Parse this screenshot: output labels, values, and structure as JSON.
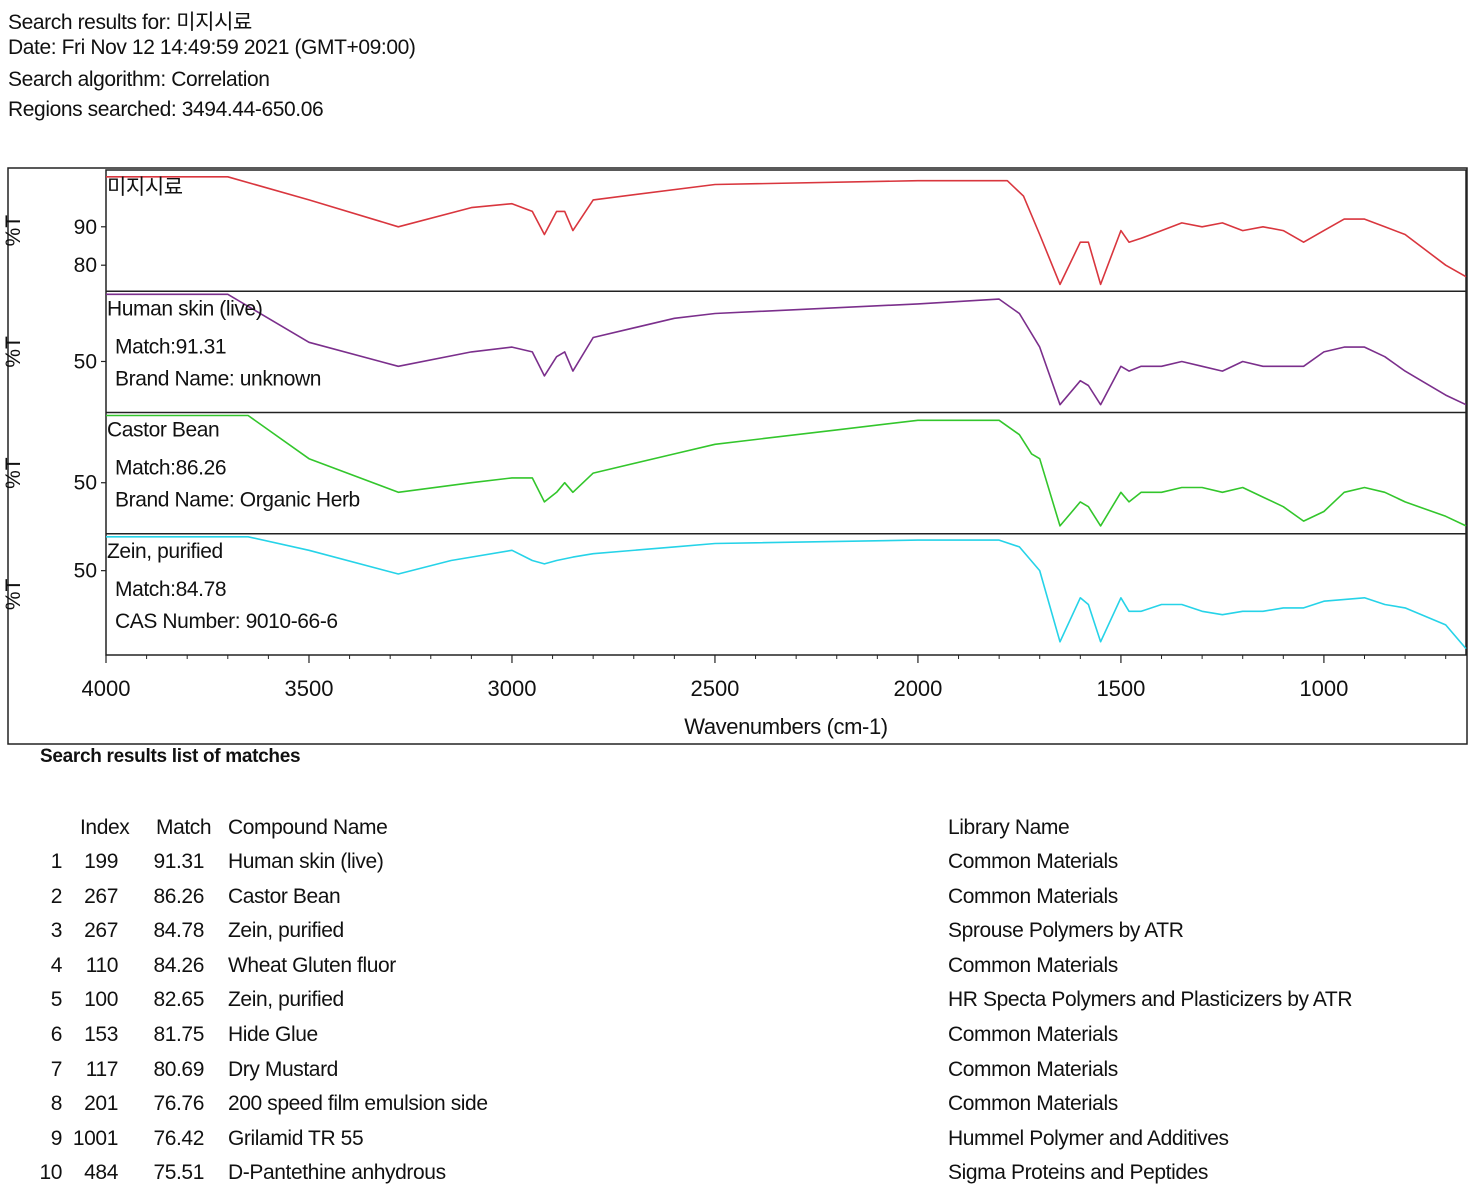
{
  "header": {
    "search_results": "Search results for:  미지시료",
    "date": "Date:  Fri Nov 12 14:49:59 2021 (GMT+09:00)",
    "algorithm": "Search algorithm:  Correlation",
    "regions": "Regions searched:  3494.44-650.06"
  },
  "chart_data": {
    "type": "line",
    "xlabel": "Wavenumbers (cm-1)",
    "xlim": [
      4000,
      650
    ],
    "x_ticks": [
      4000,
      3500,
      3000,
      2500,
      2000,
      1500,
      1000
    ],
    "panels": [
      {
        "name": "미지시료",
        "ylabel": "%T",
        "yticks": [
          90,
          80
        ],
        "ylim": [
          74,
          104
        ],
        "color": "#d9363e",
        "info": [],
        "points": [
          [
            4000,
            103
          ],
          [
            3700,
            103
          ],
          [
            3500,
            97
          ],
          [
            3280,
            90
          ],
          [
            3100,
            95
          ],
          [
            3000,
            96
          ],
          [
            2950,
            94
          ],
          [
            2920,
            88
          ],
          [
            2890,
            94
          ],
          [
            2870,
            94
          ],
          [
            2850,
            89
          ],
          [
            2800,
            97
          ],
          [
            2500,
            101
          ],
          [
            2000,
            102
          ],
          [
            1780,
            102
          ],
          [
            1740,
            98
          ],
          [
            1700,
            88
          ],
          [
            1650,
            75
          ],
          [
            1600,
            86
          ],
          [
            1580,
            86
          ],
          [
            1550,
            75
          ],
          [
            1500,
            89
          ],
          [
            1480,
            86
          ],
          [
            1450,
            87
          ],
          [
            1400,
            89
          ],
          [
            1350,
            91
          ],
          [
            1300,
            90
          ],
          [
            1250,
            91
          ],
          [
            1200,
            89
          ],
          [
            1150,
            90
          ],
          [
            1100,
            89
          ],
          [
            1050,
            86
          ],
          [
            1000,
            89
          ],
          [
            950,
            92
          ],
          [
            900,
            92
          ],
          [
            850,
            90
          ],
          [
            800,
            88
          ],
          [
            700,
            80
          ],
          [
            650,
            77
          ]
        ]
      },
      {
        "name": "Human skin (live)",
        "ylabel": "%T",
        "yticks": [
          50
        ],
        "ylim": [
          40,
          64
        ],
        "color": "#7b2f8c",
        "info": [
          "Match:91.31",
          "Brand Name:  unknown"
        ],
        "points": [
          [
            4000,
            64
          ],
          [
            3700,
            64
          ],
          [
            3500,
            54
          ],
          [
            3280,
            49
          ],
          [
            3100,
            52
          ],
          [
            3000,
            53
          ],
          [
            2950,
            52
          ],
          [
            2920,
            47
          ],
          [
            2890,
            51
          ],
          [
            2870,
            52
          ],
          [
            2850,
            48
          ],
          [
            2800,
            55
          ],
          [
            2600,
            59
          ],
          [
            2500,
            60
          ],
          [
            2000,
            62
          ],
          [
            1800,
            63
          ],
          [
            1750,
            60
          ],
          [
            1700,
            53
          ],
          [
            1650,
            41
          ],
          [
            1600,
            46
          ],
          [
            1580,
            45
          ],
          [
            1550,
            41
          ],
          [
            1500,
            49
          ],
          [
            1480,
            48
          ],
          [
            1450,
            49
          ],
          [
            1400,
            49
          ],
          [
            1350,
            50
          ],
          [
            1300,
            49
          ],
          [
            1250,
            48
          ],
          [
            1200,
            50
          ],
          [
            1150,
            49
          ],
          [
            1100,
            49
          ],
          [
            1050,
            49
          ],
          [
            1000,
            52
          ],
          [
            950,
            53
          ],
          [
            900,
            53
          ],
          [
            850,
            51
          ],
          [
            800,
            48
          ],
          [
            700,
            43
          ],
          [
            650,
            41
          ]
        ]
      },
      {
        "name": "Castor Bean",
        "ylabel": "%T",
        "yticks": [
          50
        ],
        "ylim": [
          40,
          64
        ],
        "color": "#33c62c",
        "info": [
          "Match:86.26",
          "Brand Name:  Organic Herb"
        ],
        "points": [
          [
            4000,
            64
          ],
          [
            3650,
            64
          ],
          [
            3500,
            55
          ],
          [
            3280,
            48
          ],
          [
            3100,
            50
          ],
          [
            3000,
            51
          ],
          [
            2950,
            51
          ],
          [
            2920,
            46
          ],
          [
            2890,
            48
          ],
          [
            2870,
            50
          ],
          [
            2850,
            48
          ],
          [
            2800,
            52
          ],
          [
            2600,
            56
          ],
          [
            2500,
            58
          ],
          [
            2200,
            61
          ],
          [
            2000,
            63
          ],
          [
            1800,
            63
          ],
          [
            1750,
            60
          ],
          [
            1720,
            56
          ],
          [
            1700,
            55
          ],
          [
            1650,
            41
          ],
          [
            1600,
            46
          ],
          [
            1580,
            45
          ],
          [
            1550,
            41
          ],
          [
            1500,
            48
          ],
          [
            1480,
            46
          ],
          [
            1450,
            48
          ],
          [
            1400,
            48
          ],
          [
            1350,
            49
          ],
          [
            1300,
            49
          ],
          [
            1250,
            48
          ],
          [
            1200,
            49
          ],
          [
            1150,
            47
          ],
          [
            1100,
            45
          ],
          [
            1050,
            42
          ],
          [
            1000,
            44
          ],
          [
            950,
            48
          ],
          [
            900,
            49
          ],
          [
            850,
            48
          ],
          [
            800,
            46
          ],
          [
            700,
            43
          ],
          [
            650,
            41
          ]
        ]
      },
      {
        "name": "Zein, purified",
        "ylabel": "%T",
        "yticks": [
          50
        ],
        "ylim": [
          26,
          60
        ],
        "color": "#26d3e8",
        "info": [
          "Match:84.78",
          "CAS Number:   9010-66-6"
        ],
        "points": [
          [
            4000,
            60
          ],
          [
            3650,
            60
          ],
          [
            3500,
            56
          ],
          [
            3280,
            49
          ],
          [
            3150,
            53
          ],
          [
            3000,
            56
          ],
          [
            2950,
            53
          ],
          [
            2920,
            52
          ],
          [
            2890,
            53
          ],
          [
            2850,
            54
          ],
          [
            2800,
            55
          ],
          [
            2600,
            57
          ],
          [
            2500,
            58
          ],
          [
            2000,
            59
          ],
          [
            1800,
            59
          ],
          [
            1750,
            57
          ],
          [
            1700,
            50
          ],
          [
            1650,
            29
          ],
          [
            1600,
            42
          ],
          [
            1580,
            40
          ],
          [
            1550,
            29
          ],
          [
            1500,
            42
          ],
          [
            1480,
            38
          ],
          [
            1450,
            38
          ],
          [
            1400,
            40
          ],
          [
            1350,
            40
          ],
          [
            1300,
            38
          ],
          [
            1250,
            37
          ],
          [
            1200,
            38
          ],
          [
            1150,
            38
          ],
          [
            1100,
            39
          ],
          [
            1050,
            39
          ],
          [
            1000,
            41
          ],
          [
            900,
            42
          ],
          [
            850,
            40
          ],
          [
            800,
            39
          ],
          [
            700,
            34
          ],
          [
            650,
            27
          ]
        ]
      }
    ]
  },
  "results": {
    "title": "Search results list of matches",
    "headers": {
      "index": "Index",
      "match": "Match",
      "compound": "Compound Name",
      "library": "Library Name"
    },
    "rows": [
      {
        "n": "1",
        "index": "199",
        "match": "91.31",
        "compound": "Human skin (live)",
        "library": "Common Materials"
      },
      {
        "n": "2",
        "index": "267",
        "match": "86.26",
        "compound": "Castor Bean",
        "library": "Common Materials"
      },
      {
        "n": "3",
        "index": "267",
        "match": "84.78",
        "compound": "Zein, purified",
        "library": "Sprouse Polymers by ATR"
      },
      {
        "n": "4",
        "index": "110",
        "match": "84.26",
        "compound": "Wheat Gluten fluor",
        "library": "Common Materials"
      },
      {
        "n": "5",
        "index": "100",
        "match": "82.65",
        "compound": "Zein, purified",
        "library": "HR Specta Polymers and Plasticizers by ATR"
      },
      {
        "n": "6",
        "index": "153",
        "match": "81.75",
        "compound": "Hide Glue",
        "library": "Common Materials"
      },
      {
        "n": "7",
        "index": "117",
        "match": "80.69",
        "compound": "Dry Mustard",
        "library": "Common Materials"
      },
      {
        "n": "8",
        "index": "201",
        "match": "76.76",
        "compound": "200 speed film emulsion side",
        "library": "Common Materials"
      },
      {
        "n": "9",
        "index": "1001",
        "match": "76.42",
        "compound": "Grilamid TR 55",
        "library": "Hummel Polymer and Additives"
      },
      {
        "n": "10",
        "index": "484",
        "match": "75.51",
        "compound": "D-Pantethine anhydrous",
        "library": "Sigma Proteins and Peptides"
      }
    ]
  }
}
